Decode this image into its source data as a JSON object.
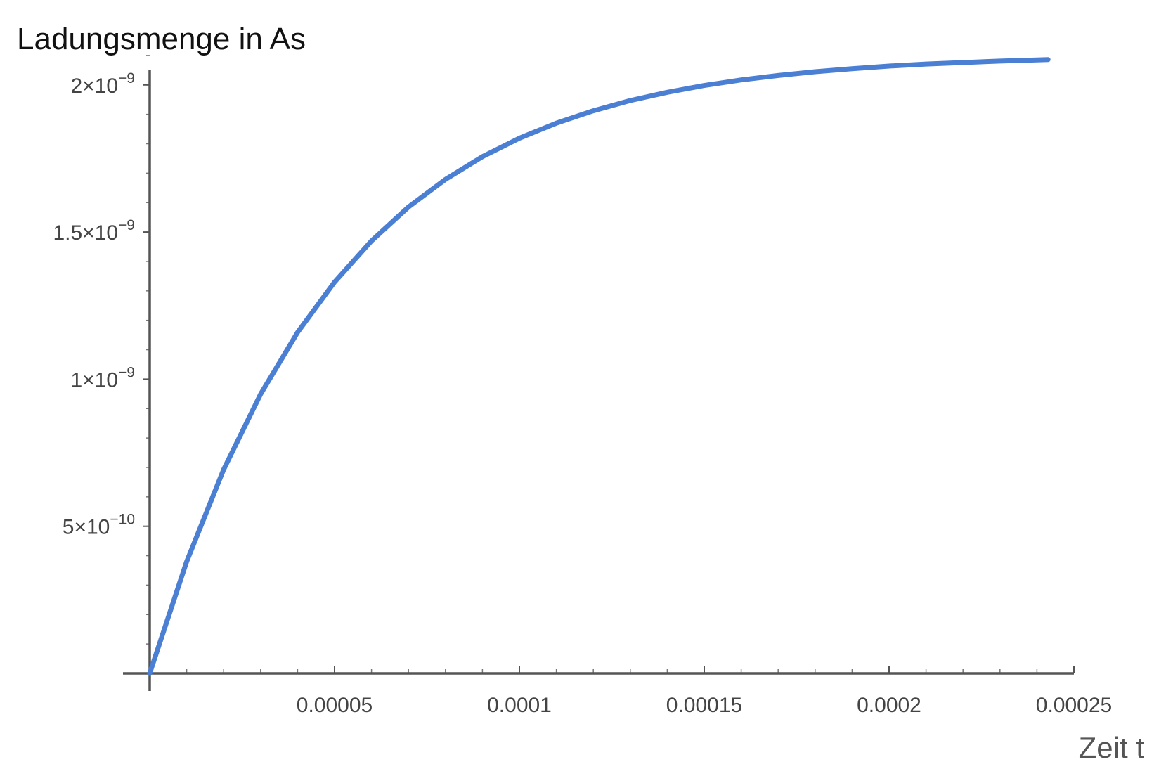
{
  "chart_data": {
    "type": "line",
    "xlabel": "Zeit t",
    "ylabel": "Ladungsmenge in As",
    "xlim": [
      0,
      0.00025
    ],
    "ylim": [
      0,
      2.15e-09
    ],
    "grid": false,
    "x_ticks": [
      {
        "value": 5e-05,
        "label": "0.00005"
      },
      {
        "value": 0.0001,
        "label": "0.0001"
      },
      {
        "value": 0.00015,
        "label": "0.00015"
      },
      {
        "value": 0.0002,
        "label": "0.0002"
      },
      {
        "value": 0.00025,
        "label": "0.00025"
      }
    ],
    "y_ticks": [
      {
        "value": 5e-10,
        "mantissa": "5",
        "times": "×10",
        "exponent": "−10"
      },
      {
        "value": 1e-09,
        "mantissa": "1",
        "times": "×10",
        "exponent": "−9"
      },
      {
        "value": 1.5e-09,
        "mantissa": "1.5",
        "times": "×10",
        "exponent": "−9"
      },
      {
        "value": 2e-09,
        "mantissa": "2",
        "times": "×10",
        "exponent": "−9"
      }
    ],
    "series": [
      {
        "color": "#4a7fd4",
        "x": [
          0,
          1e-05,
          2e-05,
          3e-05,
          4e-05,
          5e-05,
          6e-05,
          7e-05,
          8e-05,
          9e-05,
          0.0001,
          0.00011,
          0.00012,
          0.00013,
          0.00014,
          0.00015,
          0.00016,
          0.00017,
          0.00018,
          0.00019,
          0.0002,
          0.00021,
          0.00022,
          0.00023,
          0.00024,
          0.000243
        ],
        "y": [
          0,
          3.8e-10,
          6.93e-10,
          9.49e-10,
          1.159e-09,
          1.33e-09,
          1.47e-09,
          1.585e-09,
          1.679e-09,
          1.756e-09,
          1.819e-09,
          1.87e-09,
          1.912e-09,
          1.947e-09,
          1.975e-09,
          1.998e-09,
          2.017e-09,
          2.032e-09,
          2.045e-09,
          2.055e-09,
          2.064e-09,
          2.071e-09,
          2.076e-09,
          2.081e-09,
          2.085e-09,
          2.086e-09
        ]
      }
    ]
  }
}
